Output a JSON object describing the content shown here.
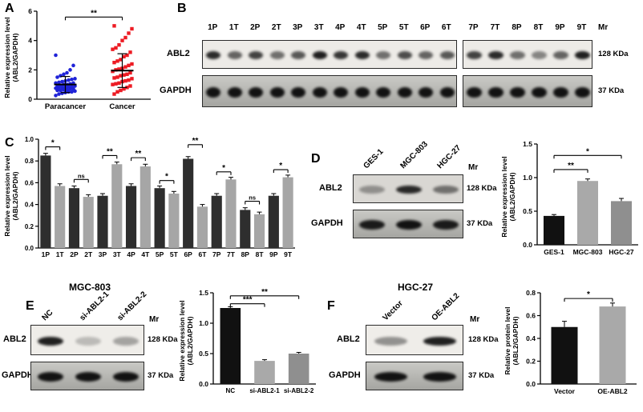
{
  "panels": {
    "A": {
      "label": "A"
    },
    "B": {
      "label": "B",
      "blot": {
        "mr": "Mr",
        "lane_groups": [
          [
            "1P",
            "1T",
            "2P",
            "2T",
            "3P",
            "3T",
            "4P",
            "4T",
            "5P",
            "5T",
            "6P",
            "6T"
          ],
          [
            "7P",
            "7T",
            "8P",
            "8T",
            "9P",
            "9T"
          ]
        ],
        "rows": [
          {
            "name": "ABL2",
            "size": "128 KDa",
            "bands": [
              [
                0.85,
                0.6,
                0.75,
                0.55,
                0.65,
                0.9,
                0.8,
                0.85,
                0.55,
                0.7,
                0.6,
                0.65
              ],
              [
                0.75,
                0.85,
                0.55,
                0.45,
                0.6,
                0.9
              ]
            ]
          },
          {
            "name": "GAPDH",
            "size": "37 KDa",
            "bands": [
              [
                0.95,
                0.95,
                0.95,
                0.95,
                0.95,
                0.95,
                0.95,
                0.95,
                0.95,
                0.95,
                0.95,
                0.95
              ],
              [
                0.95,
                0.95,
                0.95,
                0.95,
                0.95,
                0.95
              ]
            ]
          }
        ]
      }
    },
    "C": {
      "label": "C"
    },
    "D": {
      "label": "D",
      "blot": {
        "mr": "Mr",
        "lane_groups": [
          [
            "GES-1",
            "MGC-803",
            "HGC-27"
          ]
        ],
        "rows": [
          {
            "name": "ABL2",
            "size": "128 KDa",
            "bands": [
              [
                0.35,
                0.85,
                0.5
              ]
            ]
          },
          {
            "name": "GAPDH",
            "size": "37 KDa",
            "bands": [
              [
                0.9,
                0.95,
                0.9
              ]
            ]
          }
        ]
      }
    },
    "E": {
      "label": "E",
      "title": "MGC-803",
      "blot": {
        "mr": "Mr",
        "lane_groups": [
          [
            "NC",
            "si-ABL2-1",
            "si-ABL2-2"
          ]
        ],
        "rows": [
          {
            "name": "ABL2",
            "size": "128 KDa",
            "bands": [
              [
                0.9,
                0.22,
                0.32
              ]
            ]
          },
          {
            "name": "GAPDH",
            "size": "37 KDa",
            "bands": [
              [
                0.95,
                0.95,
                0.95
              ]
            ]
          }
        ]
      }
    },
    "F": {
      "label": "F",
      "title": "HGC-27",
      "blot": {
        "mr": "Mr",
        "lane_groups": [
          [
            "Vector",
            "OE-ABL2"
          ]
        ],
        "rows": [
          {
            "name": "ABL2",
            "size": "128 KDa",
            "bands": [
              [
                0.4,
                0.9
              ]
            ]
          },
          {
            "name": "GAPDH",
            "size": "37 KDa",
            "bands": [
              [
                0.95,
                0.95
              ]
            ]
          }
        ]
      }
    }
  },
  "chart_data": [
    {
      "panel": "A",
      "type": "scatter",
      "ylabel": "Relative expression level\n(ABL2/GAPDH)",
      "ylim": [
        0,
        6
      ],
      "yticks": [
        0,
        2,
        4,
        6
      ],
      "tick_decimals": 0,
      "groups": [
        {
          "name": "Paracancer",
          "color": "#1f23d8",
          "marker": "circle",
          "mean": 1.0,
          "sd": 0.55,
          "values": [
            0.25,
            0.35,
            0.4,
            0.45,
            0.5,
            0.5,
            0.55,
            0.6,
            0.6,
            0.65,
            0.65,
            0.7,
            0.7,
            0.75,
            0.75,
            0.8,
            0.8,
            0.85,
            0.85,
            0.9,
            0.9,
            0.95,
            1.0,
            1.0,
            1.05,
            1.1,
            1.1,
            1.15,
            1.2,
            1.25,
            1.3,
            1.35,
            1.4,
            1.5,
            1.6,
            1.7,
            1.8,
            2.0,
            2.3,
            3.0
          ]
        },
        {
          "name": "Cancer",
          "color": "#ed1c24",
          "marker": "square",
          "mean": 1.95,
          "sd": 1.15,
          "values": [
            0.35,
            0.5,
            0.6,
            0.7,
            0.8,
            0.9,
            1.0,
            1.05,
            1.1,
            1.2,
            1.25,
            1.3,
            1.4,
            1.45,
            1.5,
            1.6,
            1.65,
            1.7,
            1.8,
            1.9,
            2.0,
            2.05,
            2.1,
            2.2,
            2.3,
            2.4,
            2.5,
            2.6,
            2.7,
            2.9,
            3.0,
            3.2,
            3.4,
            3.5,
            3.7,
            4.0,
            4.2,
            4.5,
            4.8,
            5.0
          ]
        }
      ],
      "significance": [
        {
          "from": 0,
          "to": 1,
          "label": "**",
          "y": 5.6
        }
      ]
    },
    {
      "panel": "C",
      "type": "bar",
      "ylabel": "Relative expression level\n(ABL2/GAPDH)",
      "categories": [
        "1P",
        "1T",
        "2P",
        "2T",
        "3P",
        "3T",
        "4P",
        "4T",
        "5P",
        "5T",
        "6P",
        "6T",
        "7P",
        "7T",
        "8P",
        "8T",
        "9P",
        "9T"
      ],
      "values": [
        0.85,
        0.57,
        0.55,
        0.47,
        0.48,
        0.77,
        0.57,
        0.75,
        0.55,
        0.5,
        0.82,
        0.38,
        0.48,
        0.63,
        0.35,
        0.31,
        0.48,
        0.65
      ],
      "errors": [
        0.02,
        0.02,
        0.02,
        0.02,
        0.02,
        0.02,
        0.02,
        0.02,
        0.02,
        0.02,
        0.02,
        0.02,
        0.02,
        0.02,
        0.02,
        0.02,
        0.02,
        0.02
      ],
      "color_pattern": [
        "#2e2e2e",
        "#a6a6a6"
      ],
      "ylim": [
        0,
        1.0
      ],
      "yticks": [
        0,
        0.2,
        0.4,
        0.6,
        0.8,
        1.0
      ],
      "tick_decimals": 1,
      "significance": [
        {
          "from": 0,
          "to": 1,
          "label": "*",
          "y": 0.93
        },
        {
          "from": 2,
          "to": 3,
          "label": "ns",
          "y": 0.63
        },
        {
          "from": 4,
          "to": 5,
          "label": "**",
          "y": 0.85
        },
        {
          "from": 6,
          "to": 7,
          "label": "**",
          "y": 0.83
        },
        {
          "from": 8,
          "to": 9,
          "label": "*",
          "y": 0.62
        },
        {
          "from": 10,
          "to": 11,
          "label": "**",
          "y": 0.95
        },
        {
          "from": 12,
          "to": 13,
          "label": "*",
          "y": 0.7
        },
        {
          "from": 14,
          "to": 15,
          "label": "ns",
          "y": 0.43
        },
        {
          "from": 16,
          "to": 17,
          "label": "*",
          "y": 0.72
        }
      ]
    },
    {
      "panel": "D",
      "type": "bar",
      "ylabel": "Relative expression level\n(ABL2/GAPDH)",
      "categories": [
        "GES-1",
        "MGC-803",
        "HGC-27"
      ],
      "values": [
        0.43,
        0.95,
        0.65
      ],
      "errors": [
        0.02,
        0.03,
        0.04
      ],
      "colors": [
        "#111111",
        "#a9a9a9",
        "#8f8f8f"
      ],
      "ylim": [
        0,
        1.5
      ],
      "yticks": [
        0,
        0.5,
        1.0,
        1.5
      ],
      "tick_decimals": 1,
      "significance": [
        {
          "from": 0,
          "to": 1,
          "label": "**",
          "y": 1.12
        },
        {
          "from": 0,
          "to": 2,
          "label": "*",
          "y": 1.33
        }
      ]
    },
    {
      "panel": "E",
      "type": "bar",
      "ylabel": "Relative expression level\n(ABL2/GAPDH)",
      "categories": [
        "NC",
        "si-ABL2-1",
        "si-ABL2-2"
      ],
      "values": [
        1.25,
        0.38,
        0.5
      ],
      "errors": [
        0.02,
        0.02,
        0.02
      ],
      "colors": [
        "#111111",
        "#a9a9a9",
        "#8f8f8f"
      ],
      "ylim": [
        0,
        1.5
      ],
      "yticks": [
        0,
        0.5,
        1.0,
        1.5
      ],
      "tick_decimals": 1,
      "significance": [
        {
          "from": 0,
          "to": 1,
          "label": "***",
          "y": 1.32
        },
        {
          "from": 0,
          "to": 2,
          "label": "**",
          "y": 1.45
        }
      ]
    },
    {
      "panel": "F",
      "type": "bar",
      "ylabel": "Relative protein level\n(ABL2/GAPDH)",
      "categories": [
        "Vector",
        "OE-ABL2"
      ],
      "values": [
        0.5,
        0.68
      ],
      "errors": [
        0.05,
        0.03
      ],
      "colors": [
        "#111111",
        "#a9a9a9"
      ],
      "ylim": [
        0,
        0.8
      ],
      "yticks": [
        0,
        0.2,
        0.4,
        0.6,
        0.8
      ],
      "tick_decimals": 1,
      "significance": [
        {
          "from": 0,
          "to": 1,
          "label": "*",
          "y": 0.75
        }
      ]
    }
  ]
}
